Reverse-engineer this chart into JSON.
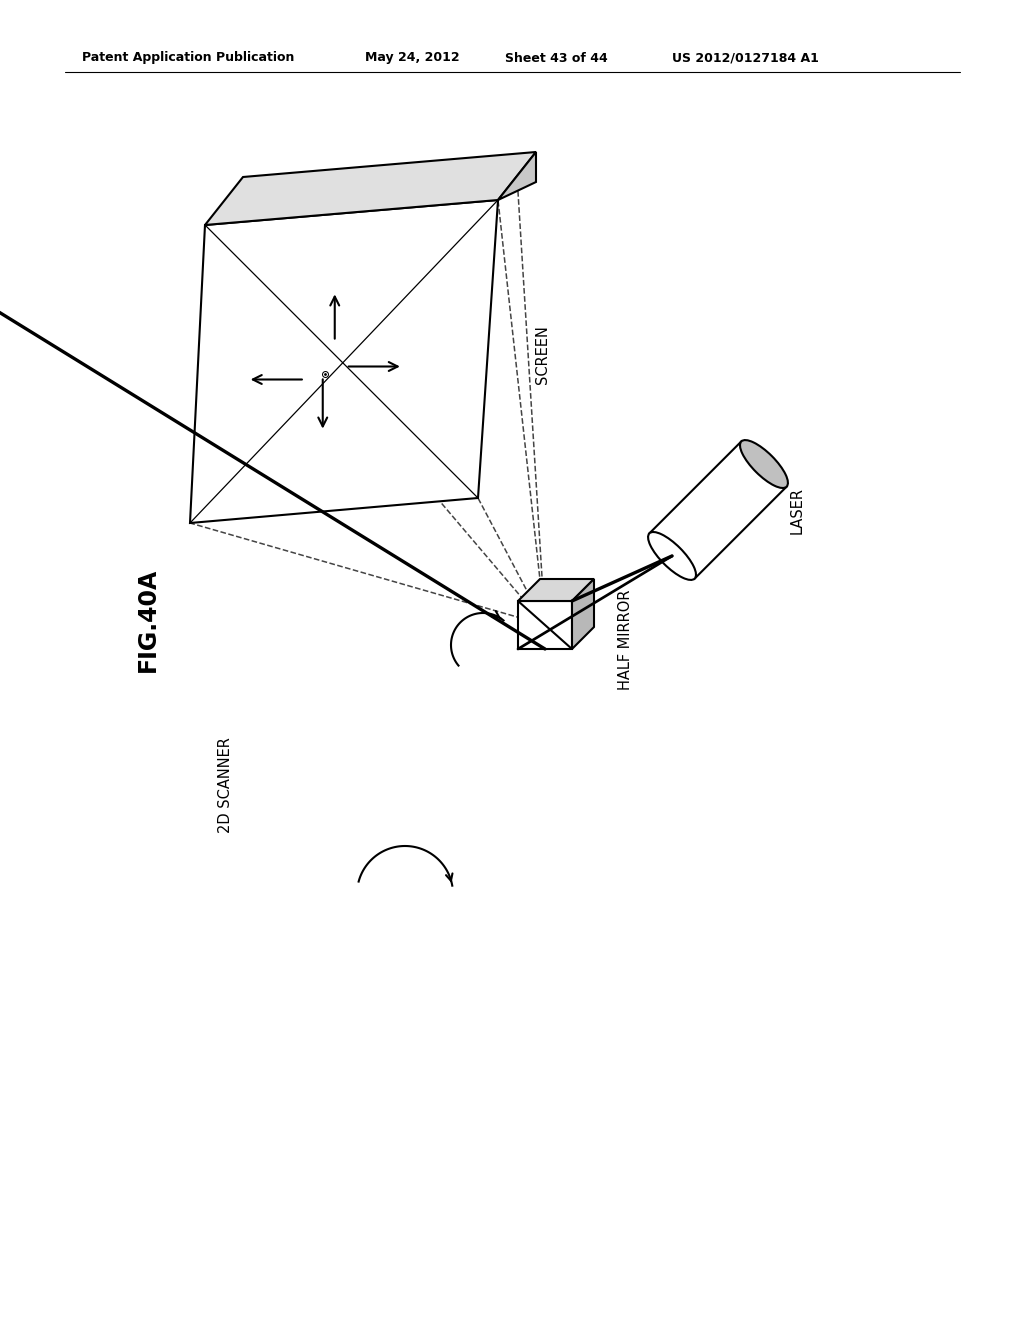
{
  "background_color": "#ffffff",
  "header_text": "Patent Application Publication",
  "header_date": "May 24, 2012",
  "header_sheet": "Sheet 43 of 44",
  "header_patent": "US 2012/0127184 A1",
  "fig_label": "FIG.40A",
  "labels": {
    "screen": "SCREEN",
    "laser": "LASER",
    "half_mirror": "HALF MIRROR",
    "scanner": "2D SCANNER"
  },
  "line_color": "#000000",
  "lw": 1.5,
  "lw_thin": 0.9
}
